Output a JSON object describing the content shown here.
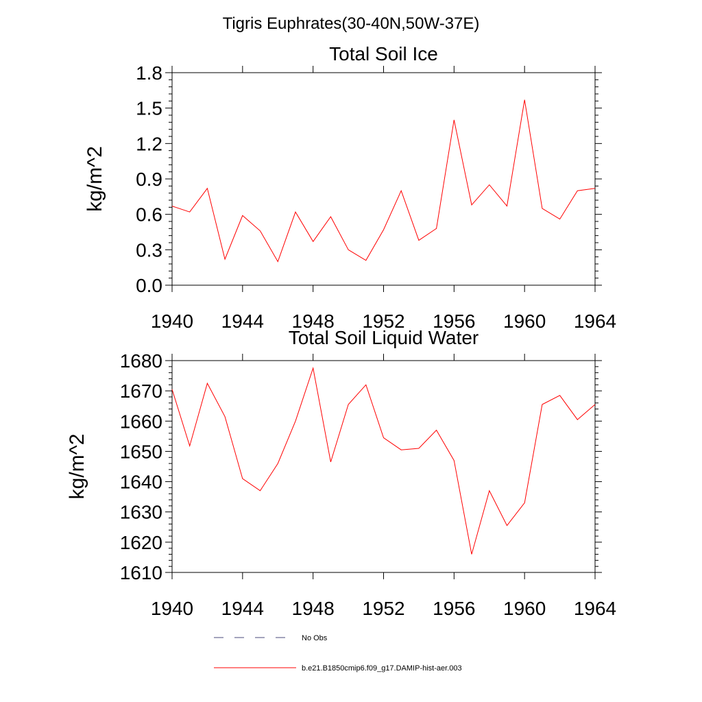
{
  "figure_title": "Tigris Euphrates(30-40N,50W-37E)",
  "legend": {
    "items": [
      {
        "label": "No Obs",
        "color": "#4a4a7a",
        "style": "dashed"
      },
      {
        "label": "b.e21.B1850cmip6.f09_g17.DAMIP-hist-aer.003",
        "color": "#ff0000",
        "style": "solid"
      }
    ]
  },
  "chart_data": [
    {
      "type": "line",
      "title": "Total Soil Ice",
      "ylabel": "kg/m^2",
      "xlabel": "",
      "xlim": [
        1940,
        1964
      ],
      "ylim": [
        0.0,
        1.8
      ],
      "x_ticks": [
        1940,
        1944,
        1948,
        1952,
        1956,
        1960,
        1964
      ],
      "y_ticks": [
        0.0,
        0.3,
        0.6,
        0.9,
        1.2,
        1.5,
        1.8
      ],
      "y_tick_labels": [
        "0.0",
        "0.3",
        "0.6",
        "0.9",
        "1.2",
        "1.5",
        "1.8"
      ],
      "grid": false,
      "series": [
        {
          "color": "#ff0000",
          "x": [
            1940,
            1941,
            1942,
            1943,
            1944,
            1945,
            1946,
            1947,
            1948,
            1949,
            1950,
            1951,
            1952,
            1953,
            1954,
            1955,
            1956,
            1957,
            1958,
            1959,
            1960,
            1961,
            1962,
            1963,
            1964
          ],
          "values": [
            0.67,
            0.62,
            0.82,
            0.22,
            0.59,
            0.46,
            0.2,
            0.62,
            0.37,
            0.58,
            0.3,
            0.21,
            0.47,
            0.8,
            0.38,
            0.48,
            1.4,
            0.68,
            0.85,
            0.67,
            1.57,
            0.65,
            0.56,
            0.8,
            0.82
          ]
        }
      ]
    },
    {
      "type": "line",
      "title": "Total Soil Liquid Water",
      "ylabel": "kg/m^2",
      "xlabel": "",
      "xlim": [
        1940,
        1964
      ],
      "ylim": [
        1610,
        1680
      ],
      "x_ticks": [
        1940,
        1944,
        1948,
        1952,
        1956,
        1960,
        1964
      ],
      "y_ticks": [
        1610,
        1620,
        1630,
        1640,
        1650,
        1660,
        1670,
        1680
      ],
      "y_tick_labels": [
        "1610",
        "1620",
        "1630",
        "1640",
        "1650",
        "1660",
        "1670",
        "1680"
      ],
      "grid": false,
      "series": [
        {
          "color": "#ff0000",
          "x": [
            1940,
            1941,
            1942,
            1943,
            1944,
            1945,
            1946,
            1947,
            1948,
            1949,
            1950,
            1951,
            1952,
            1953,
            1954,
            1955,
            1956,
            1957,
            1958,
            1959,
            1960,
            1961,
            1962,
            1963,
            1964
          ],
          "values": [
            1670.5,
            1651.8,
            1672.5,
            1661.5,
            1641,
            1637,
            1646,
            1660,
            1677.5,
            1646.5,
            1665.5,
            1672,
            1654.5,
            1650.5,
            1651,
            1657,
            1647,
            1616,
            1637,
            1625.5,
            1633,
            1665.5,
            1668.5,
            1660.5,
            1665.5
          ]
        }
      ]
    }
  ]
}
